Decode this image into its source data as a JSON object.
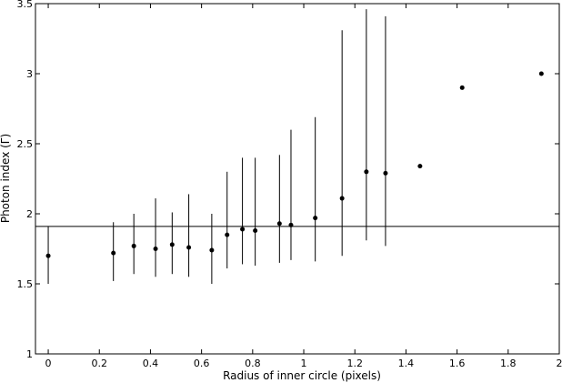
{
  "chart_data": {
    "type": "scatter",
    "title": "",
    "xlabel": "Radius of inner circle (pixels)",
    "ylabel": "Photon index (Γ)",
    "xlim": [
      -0.05,
      2.0
    ],
    "ylim": [
      1.0,
      3.5
    ],
    "x_ticks": [
      0,
      0.2,
      0.4,
      0.6,
      0.8,
      1,
      1.2,
      1.4,
      1.6,
      1.8,
      2
    ],
    "x_tick_labels": [
      "0",
      "0.2",
      "0.4",
      "0.6",
      "0.8",
      "1",
      "1.2",
      "1.4",
      "1.6",
      "1.8",
      "2"
    ],
    "y_ticks": [
      1,
      1.5,
      2,
      2.5,
      3,
      3.5
    ],
    "y_tick_labels": [
      "1",
      "1.5",
      "2",
      "2.5",
      "3",
      "3.5"
    ],
    "reference_line": {
      "y": 1.91
    },
    "grid": false,
    "points": [
      {
        "x": 0.0,
        "y": 1.7,
        "ylow": 1.5,
        "yhigh": 1.91
      },
      {
        "x": 0.255,
        "y": 1.72,
        "ylow": 1.52,
        "yhigh": 1.94
      },
      {
        "x": 0.335,
        "y": 1.77,
        "ylow": 1.57,
        "yhigh": 2.0
      },
      {
        "x": 0.42,
        "y": 1.75,
        "ylow": 1.55,
        "yhigh": 2.11
      },
      {
        "x": 0.485,
        "y": 1.78,
        "ylow": 1.57,
        "yhigh": 2.01
      },
      {
        "x": 0.55,
        "y": 1.76,
        "ylow": 1.55,
        "yhigh": 2.14
      },
      {
        "x": 0.64,
        "y": 1.74,
        "ylow": 1.5,
        "yhigh": 2.0
      },
      {
        "x": 0.7,
        "y": 1.85,
        "ylow": 1.61,
        "yhigh": 2.3
      },
      {
        "x": 0.76,
        "y": 1.89,
        "ylow": 1.64,
        "yhigh": 2.4
      },
      {
        "x": 0.81,
        "y": 1.88,
        "ylow": 1.63,
        "yhigh": 2.4
      },
      {
        "x": 0.905,
        "y": 1.93,
        "ylow": 1.65,
        "yhigh": 2.42
      },
      {
        "x": 0.95,
        "y": 1.92,
        "ylow": 1.67,
        "yhigh": 2.6
      },
      {
        "x": 1.045,
        "y": 1.97,
        "ylow": 1.66,
        "yhigh": 2.69
      },
      {
        "x": 1.15,
        "y": 2.11,
        "ylow": 1.7,
        "yhigh": 3.31
      },
      {
        "x": 1.245,
        "y": 2.3,
        "ylow": 1.81,
        "yhigh": 3.46
      },
      {
        "x": 1.32,
        "y": 2.29,
        "ylow": 1.77,
        "yhigh": 3.41
      },
      {
        "x": 1.455,
        "y": 2.34
      },
      {
        "x": 1.62,
        "y": 2.9
      },
      {
        "x": 1.93,
        "y": 3.0
      }
    ]
  }
}
